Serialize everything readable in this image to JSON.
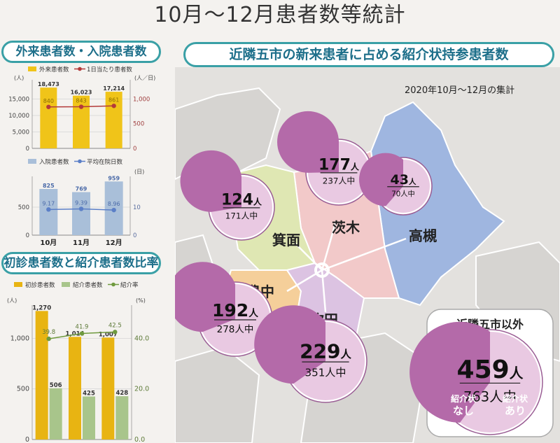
{
  "title": "10月～12月患者数等統計",
  "outpatient_section": {
    "title": "外来患者数・入院患者数"
  },
  "referral_ratio_section": {
    "title": "初診患者数と紹介患者数比率"
  },
  "map_section": {
    "title": "近隣五市の新来患者に占める紹介状持参患者数",
    "period": "2020年10月～12月の集計"
  },
  "chart_data": [
    {
      "type": "bar",
      "id": "outpatients",
      "categories": [
        "10月",
        "11月",
        "12月"
      ],
      "series": [
        {
          "name": "外来患者数",
          "type": "bar",
          "axis": "left",
          "values": [
            18473,
            16023,
            17214
          ],
          "labels": [
            "18,473",
            "16,023",
            "17,214"
          ],
          "color": "#f0c419"
        },
        {
          "name": "1日当たり患者数",
          "type": "line",
          "axis": "right",
          "values": [
            840,
            843,
            861
          ],
          "labels": [
            "840",
            "843",
            "861"
          ],
          "color": "#b33a3a"
        }
      ],
      "left_axis": {
        "unit": "(人)",
        "ticks": [
          0,
          5000,
          10000,
          15000
        ],
        "tick_labels": [
          "0",
          "5,000",
          "10,000",
          "15,000"
        ],
        "ylim": [
          0,
          20000
        ]
      },
      "right_axis": {
        "unit": "(人／日)",
        "ticks": [
          0,
          500,
          1000
        ],
        "tick_labels": [
          "0",
          "500",
          "1,000"
        ],
        "ylim": [
          0,
          1333
        ]
      },
      "grid": true
    },
    {
      "type": "bar",
      "id": "inpatients",
      "categories": [
        "10月",
        "11月",
        "12月"
      ],
      "series": [
        {
          "name": "入院患者数",
          "type": "bar",
          "axis": "left",
          "values": [
            825,
            769,
            959
          ],
          "labels": [
            "825",
            "769",
            "959"
          ],
          "color": "#a9bfd9"
        },
        {
          "name": "平均在院日数",
          "type": "line",
          "axis": "right",
          "values": [
            9.17,
            9.39,
            8.96
          ],
          "labels": [
            "9.17",
            "9.39",
            "8.96"
          ],
          "color": "#5b7fc7"
        }
      ],
      "left_axis": {
        "unit": "",
        "ticks": [
          0,
          500
        ],
        "tick_labels": [
          "0",
          "500"
        ],
        "ylim": [
          0,
          1000
        ]
      },
      "right_axis": {
        "unit": "(日)",
        "ticks": [
          0,
          10
        ],
        "tick_labels": [
          "0",
          "10"
        ],
        "ylim": [
          0,
          20
        ]
      },
      "grid": true
    },
    {
      "type": "bar",
      "id": "referrals",
      "categories": [
        "10月",
        "11月",
        "12月"
      ],
      "series": [
        {
          "name": "初診患者数",
          "type": "bar",
          "axis": "left",
          "values": [
            1270,
            1014,
            1007
          ],
          "labels": [
            "1,270",
            "1,014",
            "1,007"
          ],
          "color": "#e8b412"
        },
        {
          "name": "紹介患者数",
          "type": "bar",
          "axis": "left",
          "values": [
            506,
            425,
            428
          ],
          "labels": [
            "506",
            "425",
            "428"
          ],
          "color": "#a8c58b"
        },
        {
          "name": "紹介率",
          "type": "line",
          "axis": "right",
          "values": [
            39.8,
            41.9,
            42.5
          ],
          "labels": [
            "39.8",
            "41.9",
            "42.5"
          ],
          "color": "#6f9a3e"
        }
      ],
      "left_axis": {
        "unit": "(人)",
        "ticks": [
          0,
          500,
          1000
        ],
        "tick_labels": [
          "0",
          "500",
          "1,000"
        ],
        "ylim": [
          0,
          1300
        ]
      },
      "right_axis": {
        "unit": "(%)",
        "ticks": [
          0,
          20,
          40
        ],
        "tick_labels": [
          "0.0",
          "20.0",
          "40.0"
        ],
        "ylim": [
          0,
          52
        ]
      },
      "grid": true
    },
    {
      "type": "pie",
      "id": "city-referrals",
      "unit": "人",
      "total_suffix": "人中",
      "cities": [
        {
          "name": "箕面",
          "referred": 124,
          "total": 171
        },
        {
          "name": "茨木",
          "referred": 177,
          "total": 237
        },
        {
          "name": "高槻",
          "referred": 43,
          "total": 70
        },
        {
          "name": "豊中",
          "referred": 192,
          "total": 278
        },
        {
          "name": "吹田",
          "referred": 229,
          "total": 351
        }
      ],
      "outside": {
        "title": "近隣五市以外",
        "referred": 459,
        "total": 763,
        "legend_without": "紹介状\nなし",
        "legend_with": "紹介状\nあり"
      }
    }
  ],
  "colors": {
    "teal": "#3aa0a6",
    "pie_referred": "#b46aa9",
    "pie_other": "#e9c9e2",
    "map_minoh": "#dfe7b3",
    "map_ibaraki": "#f2c9c9",
    "map_takatsuki": "#9fb6e0",
    "map_toyonaka": "#f5cf9a",
    "map_suita": "#dcc3e2"
  }
}
